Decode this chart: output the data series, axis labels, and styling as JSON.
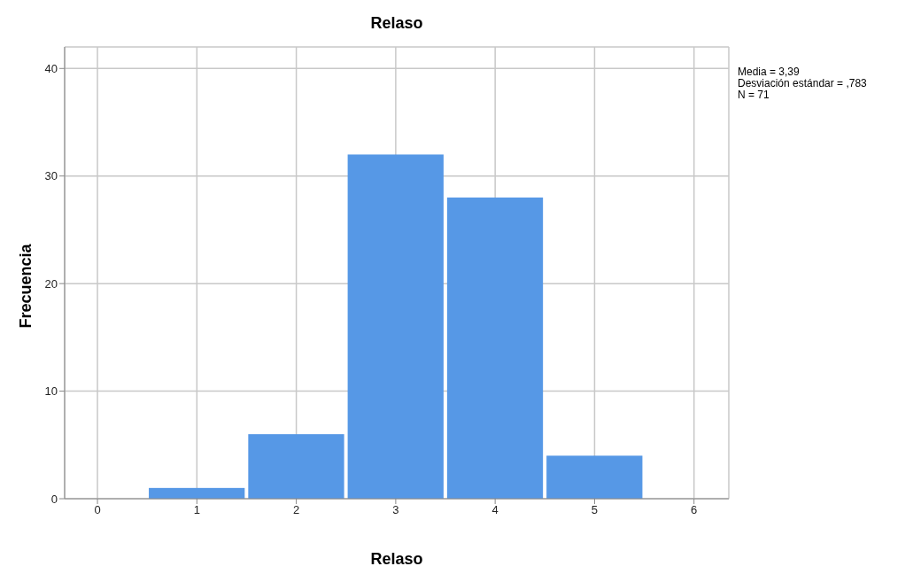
{
  "chart_data": {
    "type": "histogram",
    "title": "Relaso",
    "xlabel": "Relaso",
    "ylabel": "Frecuencia",
    "bins": [
      0.5,
      1.5,
      2.5,
      3.5,
      4.5,
      5.5
    ],
    "values": [
      1,
      6,
      32,
      28,
      4
    ],
    "color": "#5698e6",
    "xlim": [
      -0.33,
      6.35
    ],
    "xticks": [
      0,
      1,
      2,
      3,
      4,
      5,
      6
    ],
    "ylim": [
      0,
      42
    ],
    "yticks": [
      0,
      10,
      20,
      30,
      40
    ],
    "grid": true,
    "annotations": [
      "Media = 3,39",
      "Desviación estándar = ,783",
      "N = 71"
    ]
  }
}
